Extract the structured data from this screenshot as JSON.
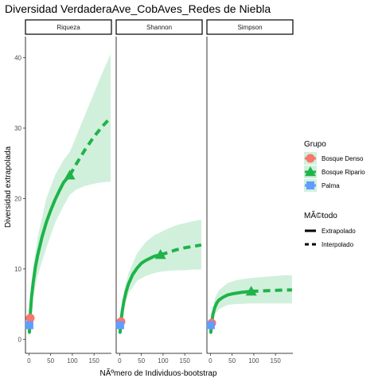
{
  "chart_data": {
    "type": "line",
    "title": "Diversidad VerdaderaAve_CobAves_Redes de Niebla",
    "xlabel": "NÃºmero de Individuos-bootstrap",
    "ylabel": "Diversidad extrapolada",
    "xlim": [
      -8,
      190
    ],
    "ylim": [
      -2,
      43
    ],
    "x_ticks": [
      0,
      50,
      100,
      150
    ],
    "y_ticks": [
      0,
      10,
      20,
      30,
      40
    ],
    "panels": [
      {
        "name": "Riqueza",
        "series": [
          {
            "name": "Bosque Ripario",
            "color": "#1fb34a",
            "ribbon_color": "#d1f0dc",
            "observed": {
              "x": 94,
              "y": 23.3
            },
            "interpolated": {
              "x": [
                1,
                3,
                6,
                10,
                15,
                20,
                30,
                40,
                50,
                60,
                70,
                80,
                94
              ],
              "y": [
                1.0,
                3.5,
                6.0,
                8.2,
                10.3,
                11.9,
                14.5,
                16.6,
                18.3,
                19.8,
                21.1,
                22.3,
                23.3
              ]
            },
            "extrapolated": {
              "x": [
                94,
                110,
                130,
                150,
                170,
                188
              ],
              "y": [
                23.3,
                25.0,
                27.0,
                28.8,
                30.3,
                31.5
              ]
            },
            "ribbon": {
              "x": [
                1,
                10,
                20,
                40,
                60,
                80,
                94,
                110,
                130,
                150,
                170,
                188
              ],
              "lower": [
                0.5,
                6.0,
                9.0,
                13.0,
                16.5,
                19.0,
                20.5,
                21.3,
                21.8,
                22.1,
                22.3,
                22.4
              ],
              "upper": [
                1.5,
                10.5,
                14.5,
                20.0,
                23.3,
                25.5,
                26.6,
                29.0,
                32.0,
                35.0,
                38.0,
                40.5
              ]
            }
          },
          {
            "name": "Bosque Denso",
            "color": "#f8766d",
            "observed": {
              "x": 3,
              "y": 3.0
            }
          },
          {
            "name": "Palma",
            "color": "#619cff",
            "observed": {
              "x": 1,
              "y": 2.0
            }
          }
        ]
      },
      {
        "name": "Shannon",
        "series": [
          {
            "name": "Bosque Ripario",
            "color": "#1fb34a",
            "ribbon_color": "#d1f0dc",
            "observed": {
              "x": 94,
              "y": 12.0
            },
            "interpolated": {
              "x": [
                1,
                3,
                6,
                10,
                15,
                20,
                30,
                40,
                50,
                60,
                70,
                80,
                94
              ],
              "y": [
                1.0,
                2.5,
                4.0,
                5.5,
                6.8,
                7.8,
                9.2,
                10.1,
                10.8,
                11.2,
                11.5,
                11.8,
                12.0
              ]
            },
            "extrapolated": {
              "x": [
                94,
                110,
                130,
                150,
                170,
                188
              ],
              "y": [
                12.0,
                12.3,
                12.7,
                13.0,
                13.2,
                13.4
              ]
            },
            "ribbon": {
              "x": [
                1,
                10,
                20,
                40,
                60,
                80,
                94,
                110,
                130,
                150,
                170,
                188
              ],
              "lower": [
                0.5,
                4.5,
                6.5,
                8.3,
                9.0,
                9.4,
                9.6,
                9.7,
                9.8,
                9.8,
                9.9,
                9.9
              ],
              "upper": [
                1.5,
                6.8,
                9.3,
                12.2,
                13.8,
                14.8,
                15.2,
                15.7,
                16.2,
                16.5,
                16.8,
                17.0
              ]
            }
          },
          {
            "name": "Bosque Denso",
            "color": "#f8766d",
            "observed": {
              "x": 3,
              "y": 2.5
            }
          },
          {
            "name": "Palma",
            "color": "#619cff",
            "observed": {
              "x": 1,
              "y": 2.0
            }
          }
        ]
      },
      {
        "name": "Simpson",
        "series": [
          {
            "name": "Bosque Ripario",
            "color": "#1fb34a",
            "ribbon_color": "#d1f0dc",
            "observed": {
              "x": 94,
              "y": 6.8
            },
            "interpolated": {
              "x": [
                1,
                3,
                6,
                10,
                15,
                20,
                30,
                40,
                50,
                60,
                70,
                80,
                94
              ],
              "y": [
                1.0,
                2.4,
                3.6,
                4.5,
                5.2,
                5.6,
                6.0,
                6.3,
                6.45,
                6.55,
                6.65,
                6.72,
                6.8
              ]
            },
            "extrapolated": {
              "x": [
                94,
                110,
                130,
                150,
                170,
                188
              ],
              "y": [
                6.8,
                6.85,
                6.9,
                6.95,
                7.0,
                7.0
              ]
            },
            "ribbon": {
              "x": [
                1,
                10,
                20,
                40,
                60,
                80,
                94,
                110,
                130,
                150,
                170,
                188
              ],
              "lower": [
                0.5,
                3.5,
                4.3,
                4.9,
                5.0,
                5.05,
                5.1,
                5.1,
                5.1,
                5.1,
                5.1,
                5.1
              ],
              "upper": [
                1.5,
                5.8,
                7.0,
                8.0,
                8.4,
                8.6,
                8.7,
                8.8,
                8.9,
                9.0,
                9.1,
                9.1
              ]
            }
          },
          {
            "name": "Bosque Denso",
            "color": "#f8766d",
            "observed": {
              "x": 3,
              "y": 2.3
            }
          },
          {
            "name": "Palma",
            "color": "#619cff",
            "observed": {
              "x": 1,
              "y": 2.0
            }
          }
        ]
      }
    ],
    "legend": {
      "position": "right",
      "group_title": "Grupo",
      "groups": [
        {
          "name": "Bosque Denso",
          "color": "#f8766d",
          "shape": "circle"
        },
        {
          "name": "Bosque Ripario",
          "color": "#1fb34a",
          "shape": "triangle"
        },
        {
          "name": "Palma",
          "color": "#619cff",
          "shape": "square"
        }
      ],
      "method_title": "MÃ©todo",
      "methods": [
        {
          "name": "Extrapolado",
          "linetype": "solid"
        },
        {
          "name": "Interpolado",
          "linetype": "dashed"
        }
      ]
    }
  }
}
